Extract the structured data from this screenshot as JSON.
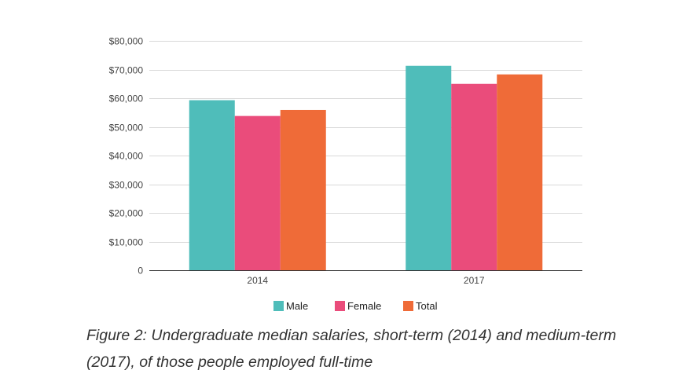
{
  "chart_data": {
    "type": "bar",
    "categories": [
      "2014",
      "2017"
    ],
    "series": [
      {
        "name": "Male",
        "values": [
          59300,
          71300
        ],
        "color": "#4fbdba"
      },
      {
        "name": "Female",
        "values": [
          53800,
          65000
        ],
        "color": "#ea4c7b"
      },
      {
        "name": "Total",
        "values": [
          55900,
          68300
        ],
        "color": "#ef6b38"
      }
    ],
    "ylim": [
      0,
      80000
    ],
    "yticks": [
      "0",
      "$10,000",
      "$20,000",
      "$30,000",
      "$40,000",
      "$50,000",
      "$60,000",
      "$70,000",
      "$80,000"
    ],
    "grid": true,
    "legend_position": "bottom"
  },
  "caption": "Figure 2: Undergraduate median salaries, short-term (2014) and medium-term (2017), of those people employed full-time"
}
